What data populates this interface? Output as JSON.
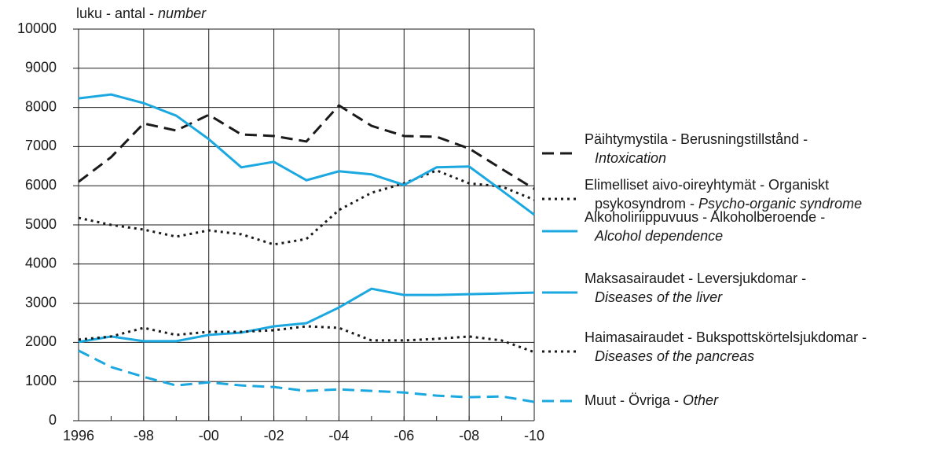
{
  "chart_data": {
    "type": "line",
    "ylabel": [
      {
        "text": "luku - antal - ",
        "italic": false
      },
      {
        "text": "number",
        "italic": true
      }
    ],
    "categories": [
      "1996",
      null,
      "-98",
      null,
      "-00",
      null,
      "-02",
      null,
      "-04",
      null,
      "-06",
      null,
      "-08",
      null,
      "-10"
    ],
    "ylim": [
      0,
      10000
    ],
    "yticks": [
      0,
      1000,
      2000,
      3000,
      4000,
      5000,
      6000,
      7000,
      8000,
      9000,
      10000
    ],
    "grid": true,
    "legend": "right",
    "series": [
      {
        "name": [
          [
            {
              "text": "Päihtymystila - Berusningstillstånd -",
              "italic": false
            }
          ],
          [
            {
              "text": "Intoxication",
              "italic": true
            }
          ]
        ],
        "color": "#1a1a1a",
        "style": "dashed",
        "values": [
          6100,
          6730,
          7590,
          7410,
          7810,
          7310,
          7270,
          7130,
          8050,
          7530,
          7270,
          7250,
          6950,
          6430,
          5920
        ]
      },
      {
        "name": [
          [
            {
              "text": "Elimelliset aivo-oireyhtymät - Organiskt",
              "italic": false
            }
          ],
          [
            {
              "text": "psykosyndrom - ",
              "italic": false
            },
            {
              "text": "Psycho-organic syndrome",
              "italic": true
            }
          ]
        ],
        "color": "#1a1a1a",
        "style": "dotted",
        "values": [
          5180,
          5000,
          4880,
          4700,
          4860,
          4760,
          4500,
          4640,
          5380,
          5820,
          6060,
          6390,
          6060,
          5980,
          5640
        ]
      },
      {
        "name": [
          [
            {
              "text": "Alkoholiriippuvuus - Alkoholberoende -",
              "italic": false
            }
          ],
          [
            {
              "text": "Alcohol dependence",
              "italic": true
            }
          ]
        ],
        "color": "#1ba8e0",
        "style": "solid",
        "values": [
          8230,
          8330,
          8110,
          7790,
          7190,
          6470,
          6610,
          6140,
          6370,
          6290,
          6020,
          6470,
          6490,
          5880,
          5260
        ]
      },
      {
        "name": [
          [
            {
              "text": "Maksasairaudet - Leversjukdomar -",
              "italic": false
            }
          ],
          [
            {
              "text": "Diseases of the liver",
              "italic": true
            }
          ]
        ],
        "color": "#1ba8e0",
        "style": "solid",
        "values": [
          2010,
          2150,
          2030,
          2030,
          2190,
          2250,
          2410,
          2490,
          2890,
          3370,
          3210,
          3210,
          3230,
          3250,
          3270
        ]
      },
      {
        "name": [
          [
            {
              "text": "Haimasairaudet - Bukspottskörtelsjukdomar -",
              "italic": false
            }
          ],
          [
            {
              "text": "Diseases of the pancreas",
              "italic": true
            }
          ]
        ],
        "color": "#1a1a1a",
        "style": "dotted",
        "values": [
          2070,
          2150,
          2370,
          2190,
          2270,
          2270,
          2310,
          2410,
          2370,
          2050,
          2050,
          2090,
          2150,
          2050,
          1750
        ]
      },
      {
        "name": [
          [
            {
              "text": "Muut - Övriga - ",
              "italic": false
            },
            {
              "text": "Other",
              "italic": true
            }
          ]
        ],
        "color": "#1ba8e0",
        "style": "dashed",
        "values": [
          1790,
          1370,
          1120,
          900,
          980,
          900,
          860,
          760,
          800,
          760,
          720,
          640,
          600,
          620,
          480
        ]
      }
    ]
  }
}
